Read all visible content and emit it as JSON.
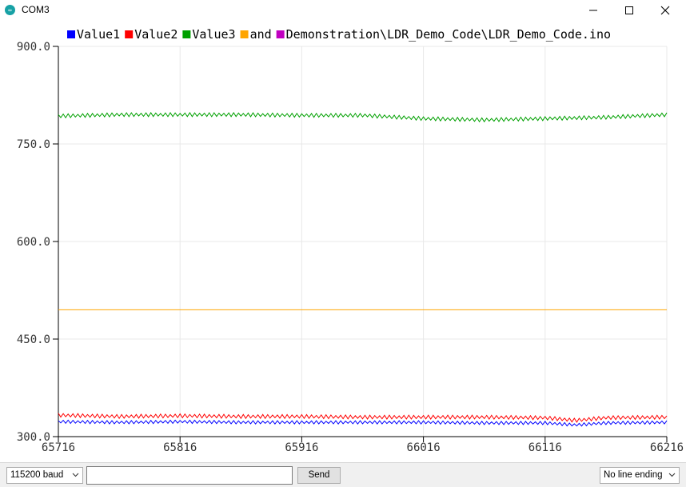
{
  "window": {
    "title": "COM3",
    "controls": [
      "minimize-icon",
      "maximize-icon",
      "close-icon"
    ]
  },
  "chart_data": {
    "type": "line",
    "title": "",
    "legend": {
      "placement": "top",
      "entries": [
        {
          "label": "Value1",
          "color": "#0000ff"
        },
        {
          "label": "Value2",
          "color": "#ff0000"
        },
        {
          "label": "Value3",
          "color": "#00a000"
        },
        {
          "label": "and",
          "color": "#ffa500"
        },
        {
          "label": "Demonstration\\LDR_Demo_Code\\LDR_Demo_Code.ino",
          "color": "#c000c0"
        }
      ]
    },
    "xlim": [
      65716,
      66216
    ],
    "ylim": [
      300,
      900
    ],
    "xticks": [
      65716,
      65816,
      65916,
      66016,
      66116,
      66216
    ],
    "xtick_labels": [
      "65716",
      "65816",
      "65916",
      "66016",
      "66116",
      "66216"
    ],
    "yticks": [
      300,
      450,
      600,
      750,
      900
    ],
    "ytick_labels": [
      "300.0",
      "450.0",
      "600.0",
      "750.0",
      "900.0"
    ],
    "grid": true,
    "series": [
      {
        "name": "Value1",
        "color": "#0000ff",
        "amplitude": 2.5,
        "x": [
          65716,
          65766,
          65816,
          65866,
          65916,
          65966,
          66016,
          66066,
          66116,
          66141,
          66166,
          66216
        ],
        "y": [
          323,
          322,
          323,
          322,
          322,
          322,
          322,
          321,
          321,
          318,
          321,
          322
        ]
      },
      {
        "name": "Value2",
        "color": "#ff0000",
        "amplitude": 3,
        "x": [
          65716,
          65766,
          65816,
          65866,
          65916,
          65966,
          66016,
          66066,
          66116,
          66141,
          66166,
          66216
        ],
        "y": [
          333,
          331,
          332,
          331,
          331,
          330,
          330,
          330,
          329,
          325,
          329,
          330
        ]
      },
      {
        "name": "Value3",
        "color": "#00a000",
        "amplitude": 3,
        "x": [
          65716,
          65766,
          65816,
          65866,
          65916,
          65966,
          66016,
          66066,
          66116,
          66166,
          66216
        ],
        "y": [
          793,
          795,
          795,
          795,
          794,
          794,
          789,
          787,
          789,
          791,
          795
        ]
      },
      {
        "name": "and",
        "color": "#ffa500",
        "amplitude": 0,
        "x": [
          65716,
          66216
        ],
        "y": [
          495,
          495
        ]
      }
    ]
  },
  "toolbar": {
    "baud": "115200 baud",
    "input_value": "",
    "send_label": "Send",
    "line_ending": "No line ending"
  }
}
